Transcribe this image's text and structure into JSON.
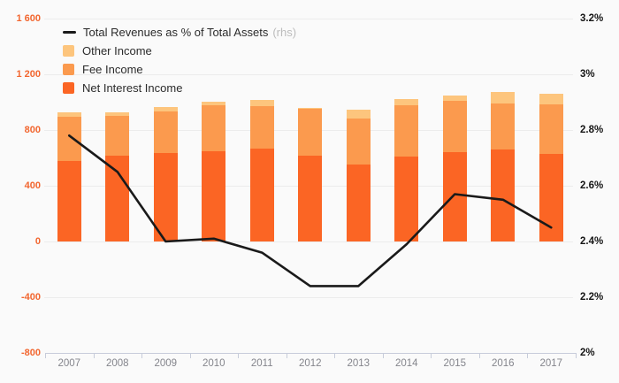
{
  "colors": {
    "background": "#fafafa",
    "gridline": "#ececec",
    "axis_line": "#c7ccda",
    "left_tick_text": "#f2662f",
    "right_tick_text": "#161616",
    "year_text": "#84858c",
    "legend_text": "#2b2b2b",
    "legend_suffix_text": "#bcbcbc"
  },
  "chart_data": {
    "type": "bar+line",
    "title": "",
    "categories": [
      "2007",
      "2008",
      "2009",
      "2010",
      "2011",
      "2012",
      "2013",
      "2014",
      "2015",
      "2016",
      "2017"
    ],
    "bar_series": [
      {
        "name": "Net Interest Income",
        "color": "#fb6524",
        "stack": "income",
        "values": [
          580,
          615,
          635,
          650,
          665,
          615,
          550,
          610,
          640,
          660,
          630
        ]
      },
      {
        "name": "Fee Income",
        "color": "#fb9a4e",
        "stack": "income",
        "values": [
          315,
          285,
          300,
          330,
          305,
          335,
          330,
          365,
          370,
          330,
          355
        ]
      },
      {
        "name": "Other Income",
        "color": "#fdc57d",
        "stack": "income",
        "values": [
          30,
          30,
          30,
          25,
          45,
          10,
          65,
          50,
          40,
          80,
          75
        ]
      }
    ],
    "line_series": {
      "name": "Total Revenues as % of Total Assets",
      "axis_note": "(rhs)",
      "axis": "right",
      "color": "#1a1a1a",
      "values": [
        2.78,
        2.65,
        2.4,
        2.41,
        2.36,
        2.24,
        2.24,
        2.39,
        2.57,
        2.55,
        2.45
      ]
    },
    "left_axis": {
      "min": -800,
      "max": 1600,
      "step": 400,
      "tick_labels": [
        "1 600",
        "1 200",
        "800",
        "400",
        "0",
        "-400",
        "-800"
      ]
    },
    "right_axis": {
      "min": 2,
      "max": 3.2,
      "step": 0.2,
      "tick_labels": [
        "3.2%",
        "3%",
        "2.8%",
        "2.6%",
        "2.4%",
        "2.2%",
        "2%"
      ]
    },
    "grid": true,
    "legend_position": "top-left"
  }
}
